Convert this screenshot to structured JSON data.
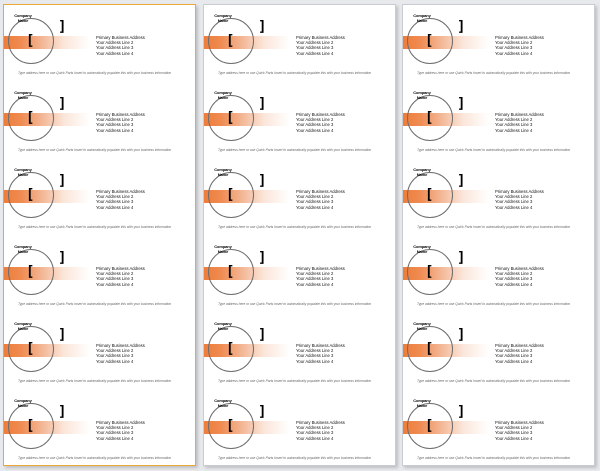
{
  "label": {
    "company_name": "Company Name",
    "address_lines": [
      "Primary Business Address",
      "Your Address Line 2",
      "Your Address Line 3",
      "Your Address Line 4"
    ],
    "tagline": "Type address here or use Quick Parts Insert to automatically populate this with your business information",
    "bracket_left": "[",
    "bracket_right": "]"
  },
  "pages": [
    {
      "selected": true
    },
    {
      "selected": false
    },
    {
      "selected": false
    }
  ],
  "labels_per_page": 6,
  "colors": {
    "accent_orange": "#ee7d3a",
    "page_background": "#ffffff",
    "canvas_background": "#e7e9ec",
    "selected_page_border": "#e8a83a"
  }
}
